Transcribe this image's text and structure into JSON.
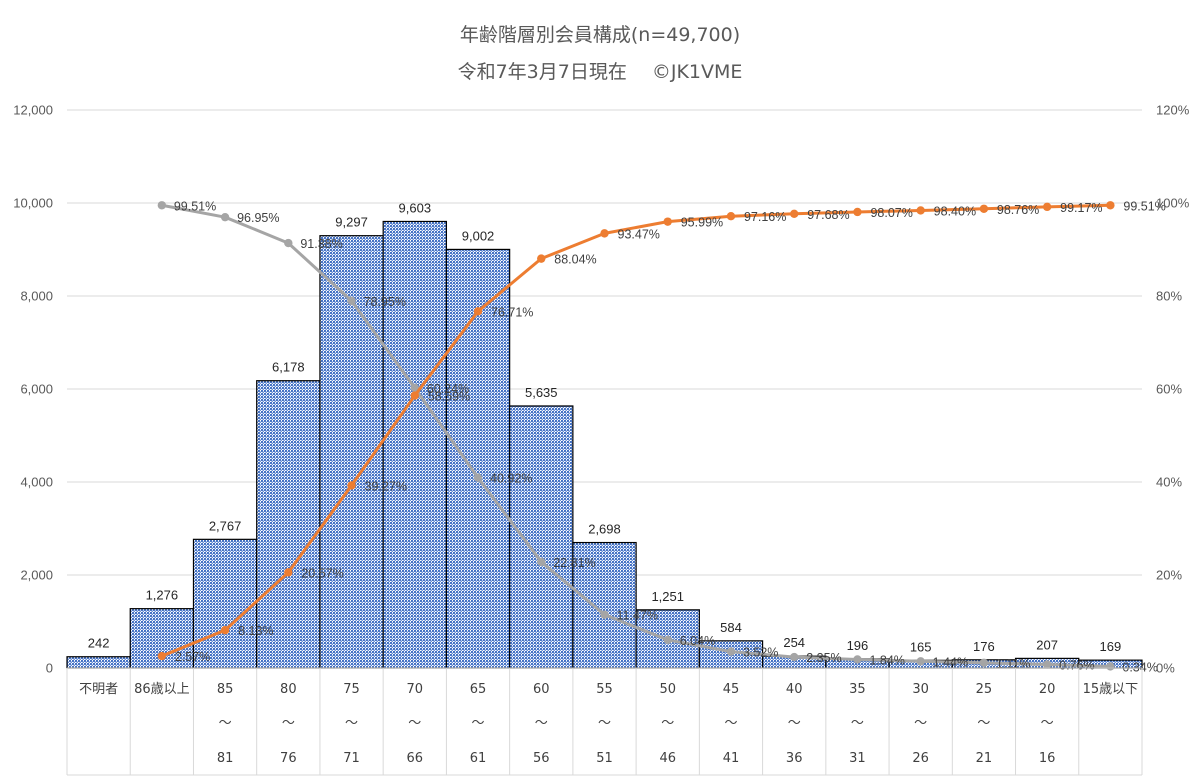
{
  "chart_data": {
    "type": "bar",
    "title": "年齢階層別会員構成(n=49,700)",
    "subtitle": "令和7年3月7日現在　 ©JK1VME",
    "categories": [
      {
        "top": "不明者",
        "mid": "",
        "bottom": ""
      },
      {
        "top": "86歳以上",
        "mid": "",
        "bottom": ""
      },
      {
        "top": "85",
        "mid": "～",
        "bottom": "81"
      },
      {
        "top": "80",
        "mid": "～",
        "bottom": "76"
      },
      {
        "top": "75",
        "mid": "～",
        "bottom": "71"
      },
      {
        "top": "70",
        "mid": "～",
        "bottom": "66"
      },
      {
        "top": "65",
        "mid": "～",
        "bottom": "61"
      },
      {
        "top": "60",
        "mid": "～",
        "bottom": "56"
      },
      {
        "top": "55",
        "mid": "～",
        "bottom": "51"
      },
      {
        "top": "50",
        "mid": "～",
        "bottom": "46"
      },
      {
        "top": "45",
        "mid": "～",
        "bottom": "41"
      },
      {
        "top": "40",
        "mid": "～",
        "bottom": "36"
      },
      {
        "top": "35",
        "mid": "～",
        "bottom": "31"
      },
      {
        "top": "30",
        "mid": "～",
        "bottom": "26"
      },
      {
        "top": "25",
        "mid": "～",
        "bottom": "21"
      },
      {
        "top": "20",
        "mid": "～",
        "bottom": "16"
      },
      {
        "top": "15歳以下",
        "mid": "",
        "bottom": ""
      }
    ],
    "bars": {
      "values": [
        242,
        1276,
        2767,
        6178,
        9297,
        9603,
        9002,
        5635,
        2698,
        1251,
        584,
        254,
        196,
        165,
        176,
        207,
        169
      ],
      "labels": [
        "242",
        "1,276",
        "2,767",
        "6,178",
        "9,297",
        "9,603",
        "9,002",
        "5,635",
        "2,698",
        "1,251",
        "584",
        "254",
        "196",
        "165",
        "176",
        "207",
        "169"
      ],
      "color": "#4472c4"
    },
    "cumulative_from_young": {
      "values": [
        null,
        99.51,
        96.95,
        91.38,
        78.95,
        60.24,
        40.92,
        22.81,
        11.47,
        6.04,
        3.52,
        2.35,
        1.84,
        1.44,
        1.11,
        0.76,
        0.34
      ],
      "labels": [
        "",
        "99.51%",
        "96.95%",
        "91.38%",
        "78.95%",
        "60.24%",
        "40.92%",
        "22.81%",
        "11.47%",
        "6.04%",
        "3.52%",
        "2.35%",
        "1.84%",
        "1.44%",
        "1.11%",
        "0.76%",
        "0.34%"
      ],
      "color": "#a5a5a5"
    },
    "cumulative_from_old": {
      "values": [
        null,
        2.57,
        8.13,
        20.57,
        39.27,
        58.59,
        76.71,
        88.04,
        93.47,
        95.99,
        97.16,
        97.68,
        98.07,
        98.4,
        98.76,
        99.17,
        99.51
      ],
      "labels": [
        "",
        "2.57%",
        "8.13%",
        "20.57%",
        "39.27%",
        "58.59%",
        "76.71%",
        "88.04%",
        "93.47%",
        "95.99%",
        "97.16%",
        "97.68%",
        "98.07%",
        "98.40%",
        "98.76%",
        "99.17%",
        "99.51%"
      ],
      "color": "#ed7d31"
    },
    "y_left": {
      "min": 0,
      "max": 12000,
      "ticks": [
        "0",
        "2,000",
        "4,000",
        "6,000",
        "8,000",
        "10,000",
        "12,000"
      ],
      "tick_values": [
        0,
        2000,
        4000,
        6000,
        8000,
        10000,
        12000
      ]
    },
    "y_right": {
      "min": 0,
      "max": 120,
      "ticks": [
        "0%",
        "20%",
        "40%",
        "60%",
        "80%",
        "100%",
        "120%"
      ],
      "tick_values": [
        0,
        20,
        40,
        60,
        80,
        100,
        120
      ]
    },
    "grid": true,
    "legend": "none"
  }
}
